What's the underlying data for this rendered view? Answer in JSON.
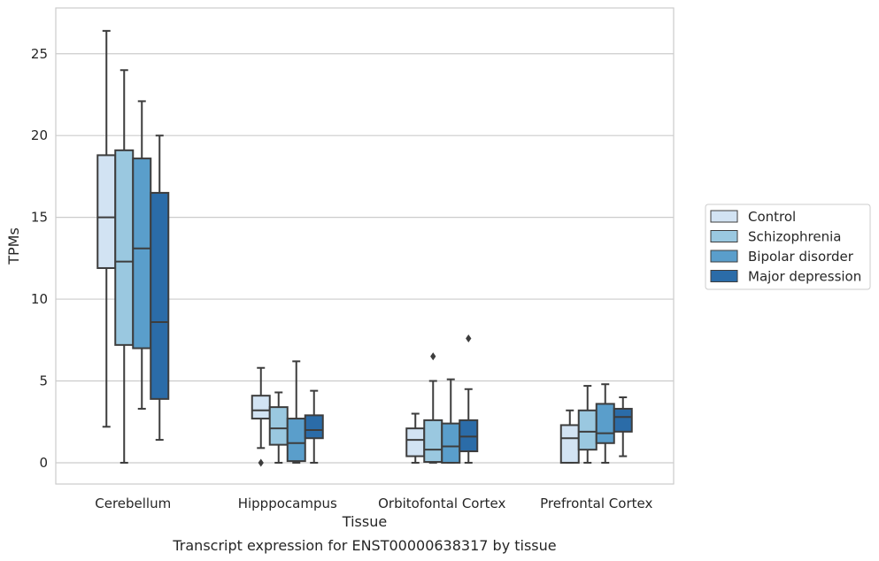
{
  "chart_data": {
    "type": "boxplot",
    "title": "Transcript expression for ENST00000638317 by tissue",
    "xlabel": "Tissue",
    "ylabel": "TPMs",
    "ylim": [
      -1.3,
      27.8
    ],
    "yticks": [
      0,
      5,
      10,
      15,
      20,
      25
    ],
    "grid": true,
    "legend_position": "right",
    "categories": [
      "Cerebellum",
      "Hipppocampus",
      "Orbitofontal Cortex",
      "Prefrontal Cortex"
    ],
    "series": [
      {
        "name": "Control",
        "color": "#d2e3f3",
        "boxes": [
          {
            "whislo": 2.2,
            "q1": 11.9,
            "med": 15.0,
            "q3": 18.8,
            "whishi": 26.4,
            "fliers": []
          },
          {
            "whislo": 0.9,
            "q1": 2.7,
            "med": 3.2,
            "q3": 4.1,
            "whishi": 5.8,
            "fliers": [
              0.0
            ]
          },
          {
            "whislo": 0.0,
            "q1": 0.4,
            "med": 1.4,
            "q3": 2.1,
            "whishi": 3.0,
            "fliers": []
          },
          {
            "whislo": 0.0,
            "q1": 0.0,
            "med": 1.5,
            "q3": 2.3,
            "whishi": 3.2,
            "fliers": []
          }
        ]
      },
      {
        "name": "Schizophrenia",
        "color": "#9ac8e0",
        "boxes": [
          {
            "whislo": 0.0,
            "q1": 7.2,
            "med": 12.3,
            "q3": 19.1,
            "whishi": 24.0,
            "fliers": []
          },
          {
            "whislo": 0.0,
            "q1": 1.1,
            "med": 2.1,
            "q3": 3.4,
            "whishi": 4.3,
            "fliers": []
          },
          {
            "whislo": 0.0,
            "q1": 0.05,
            "med": 0.8,
            "q3": 2.6,
            "whishi": 5.0,
            "fliers": [
              6.5
            ]
          },
          {
            "whislo": 0.0,
            "q1": 0.8,
            "med": 1.9,
            "q3": 3.2,
            "whishi": 4.7,
            "fliers": []
          }
        ]
      },
      {
        "name": "Bipolar disorder",
        "color": "#5a9ecb",
        "boxes": [
          {
            "whislo": 3.3,
            "q1": 7.0,
            "med": 13.1,
            "q3": 18.6,
            "whishi": 22.1,
            "fliers": []
          },
          {
            "whislo": 0.0,
            "q1": 0.1,
            "med": 1.2,
            "q3": 2.7,
            "whishi": 6.2,
            "fliers": []
          },
          {
            "whislo": 0.0,
            "q1": 0.0,
            "med": 1.0,
            "q3": 2.4,
            "whishi": 5.1,
            "fliers": []
          },
          {
            "whislo": 0.0,
            "q1": 1.2,
            "med": 1.8,
            "q3": 3.6,
            "whishi": 4.8,
            "fliers": []
          }
        ]
      },
      {
        "name": "Major depression",
        "color": "#2b6ca8",
        "boxes": [
          {
            "whislo": 1.4,
            "q1": 3.9,
            "med": 8.6,
            "q3": 16.5,
            "whishi": 20.0,
            "fliers": []
          },
          {
            "whislo": 0.0,
            "q1": 1.5,
            "med": 2.0,
            "q3": 2.9,
            "whishi": 4.4,
            "fliers": []
          },
          {
            "whislo": 0.0,
            "q1": 0.7,
            "med": 1.6,
            "q3": 2.6,
            "whishi": 4.5,
            "fliers": [
              7.6
            ]
          },
          {
            "whislo": 0.4,
            "q1": 1.9,
            "med": 2.8,
            "q3": 3.3,
            "whishi": 4.0,
            "fliers": []
          }
        ]
      }
    ]
  }
}
